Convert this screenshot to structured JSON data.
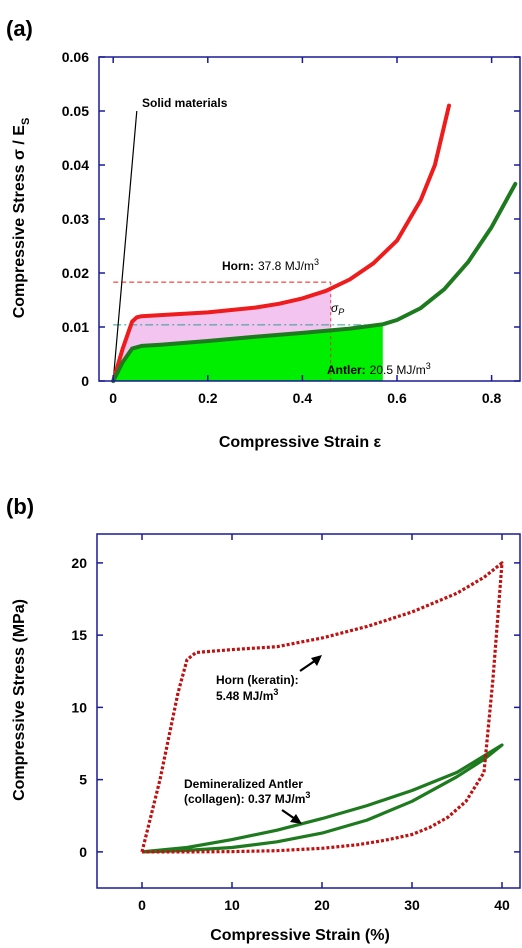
{
  "chart_data": [
    {
      "panel": "(a)",
      "type": "line",
      "xlabel": "Compressive Strain ε",
      "ylabel": "Compressive Stress σ / E",
      "ylabel_subscript": "S",
      "xlim": [
        -0.03,
        0.86
      ],
      "ylim": [
        0,
        0.06
      ],
      "xticks": [
        0,
        0.2,
        0.4,
        0.6,
        0.8
      ],
      "xtick_labels": [
        "0",
        "0.2",
        "0.4",
        "0.6",
        "0.8"
      ],
      "yticks": [
        0,
        0.01,
        0.02,
        0.03,
        0.04,
        0.05,
        0.06
      ],
      "ytick_labels": [
        "0",
        "0.01",
        "0.02",
        "0.03",
        "0.04",
        "0.05",
        "0.06"
      ],
      "grid": false,
      "colors": {
        "horn": "#ee1c1c",
        "antler": "#1e7a1e",
        "solid": "#000000",
        "horn_fill": "#f4c4f0",
        "antler_fill": "#00ee00",
        "dashed_red": "#ee1c1c",
        "dashdot": "#2aa08a"
      },
      "series": [
        {
          "name": "Solid materials",
          "x": [
            0,
            0.05
          ],
          "y": [
            0,
            0.05
          ]
        },
        {
          "name": "Horn",
          "x": [
            0,
            0.02,
            0.04,
            0.05,
            0.06,
            0.1,
            0.2,
            0.3,
            0.35,
            0.4,
            0.45,
            0.5,
            0.55,
            0.6,
            0.65,
            0.68,
            0.71
          ],
          "y": [
            0,
            0.006,
            0.011,
            0.0118,
            0.012,
            0.0122,
            0.0127,
            0.0136,
            0.0143,
            0.0153,
            0.0167,
            0.0188,
            0.0218,
            0.026,
            0.0335,
            0.04,
            0.051
          ]
        },
        {
          "name": "Antler",
          "x": [
            0,
            0.02,
            0.04,
            0.06,
            0.1,
            0.2,
            0.3,
            0.4,
            0.5,
            0.57,
            0.6,
            0.65,
            0.7,
            0.75,
            0.8,
            0.85
          ],
          "y": [
            0,
            0.0035,
            0.006,
            0.0065,
            0.0067,
            0.0074,
            0.0082,
            0.0089,
            0.0097,
            0.0105,
            0.0113,
            0.0135,
            0.017,
            0.022,
            0.0285,
            0.0365
          ]
        }
      ],
      "annotations": {
        "solid_label": "Solid materials",
        "horn_label": "Horn:",
        "horn_value": "37.8 MJ/m",
        "horn_value_sup": "3",
        "antler_label": "Antler:",
        "antler_value": "20.5 MJ/m",
        "antler_value_sup": "3",
        "sigma": "σ",
        "sigma_sub": "P"
      },
      "reference_lines": {
        "horn_dashed_y": 0.0183,
        "horn_dashed_x_end": 0.46,
        "antler_dashdot_y": 0.0104,
        "antler_dashdot_x_end": 0.57
      },
      "fill_regions": {
        "horn_x_end": 0.46,
        "antler_x_end": 0.57
      }
    },
    {
      "panel": "(b)",
      "type": "line",
      "xlabel": "Compressive Strain (%)",
      "ylabel": "Compressive Stress (MPa)",
      "xlim": [
        -5,
        42
      ],
      "ylim": [
        -2.5,
        22
      ],
      "xticks": [
        0,
        10,
        20,
        30,
        40
      ],
      "xtick_labels": [
        "0",
        "10",
        "20",
        "30",
        "40"
      ],
      "yticks": [
        0,
        5,
        10,
        15,
        20
      ],
      "ytick_labels": [
        "0",
        "5",
        "10",
        "15",
        "20"
      ],
      "grid": false,
      "colors": {
        "horn": "#c01010",
        "antler": "#1e7a1e"
      },
      "series": [
        {
          "name": "Horn (keratin)",
          "x": [
            0,
            2,
            4,
            5,
            6,
            10,
            15,
            20,
            25,
            30,
            35,
            38,
            40,
            39,
            38,
            36,
            34,
            32,
            30,
            27,
            24,
            20,
            15,
            10,
            5,
            2,
            0
          ],
          "y": [
            0,
            5,
            11,
            13.3,
            13.8,
            14,
            14.2,
            14.8,
            15.6,
            16.6,
            17.9,
            19,
            20,
            12,
            5.5,
            3.5,
            2.4,
            1.7,
            1.2,
            0.8,
            0.5,
            0.25,
            0.08,
            0.02,
            0,
            0,
            0
          ]
        },
        {
          "name": "Demineralized Antler (collagen)",
          "x": [
            0,
            5,
            10,
            15,
            20,
            25,
            30,
            35,
            40,
            38,
            35,
            30,
            25,
            20,
            15,
            10,
            5,
            0
          ],
          "y": [
            0,
            0.3,
            0.85,
            1.5,
            2.3,
            3.2,
            4.25,
            5.5,
            7.4,
            6.4,
            5.2,
            3.5,
            2.2,
            1.3,
            0.7,
            0.3,
            0.1,
            0
          ]
        }
      ],
      "annotations": {
        "horn_line1": "Horn (keratin):",
        "horn_line2": "5.48 MJ/m",
        "horn_sup": "3",
        "antler_line1": "Demineralized Antler",
        "antler_line2": "(collagen): 0.37 MJ/m",
        "antler_sup": "3"
      }
    }
  ]
}
